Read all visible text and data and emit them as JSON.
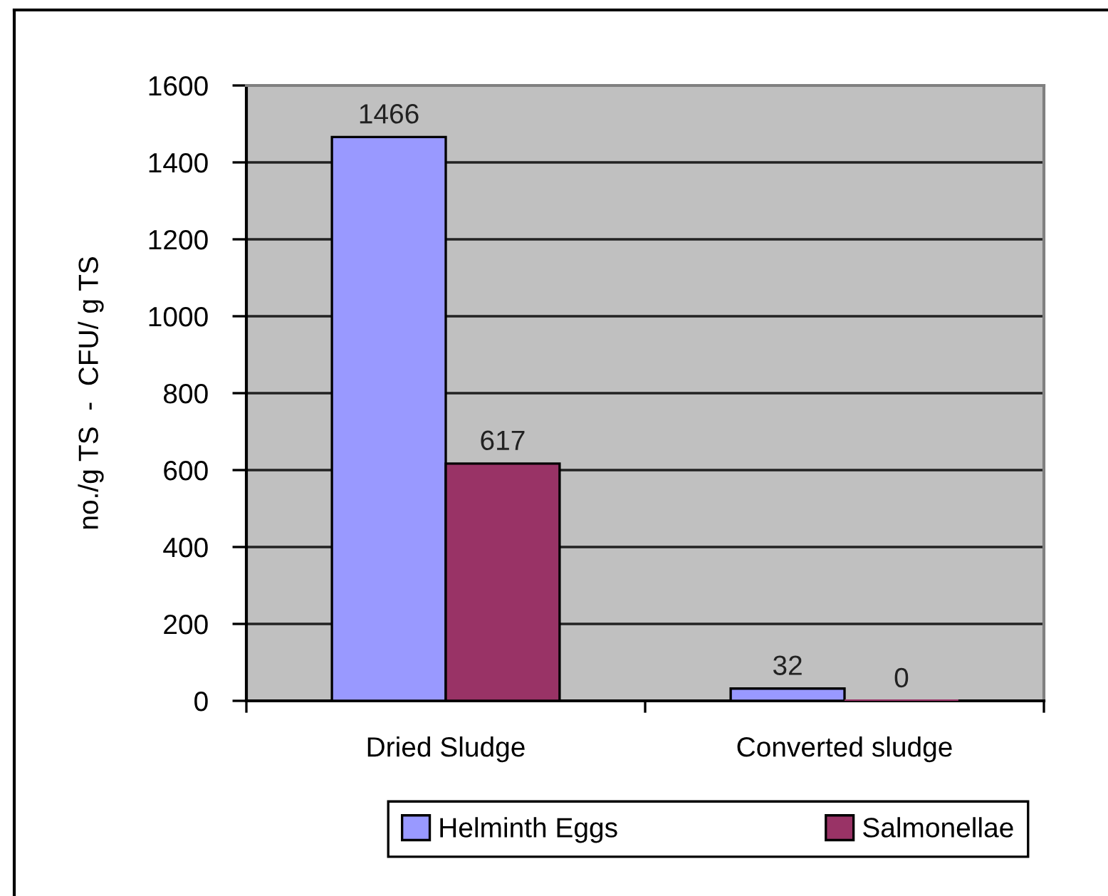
{
  "chart_data": {
    "type": "bar",
    "categories": [
      "Dried Sludge",
      "Converted sludge"
    ],
    "series": [
      {
        "name": "Helminth Eggs",
        "color": "#9999ff",
        "values": [
          1466,
          32
        ]
      },
      {
        "name": "Salmonellae",
        "color": "#993366",
        "values": [
          617,
          0
        ]
      }
    ],
    "ylabel": "no./g TS  -  CFU/ g TS",
    "ylim": [
      0,
      1600
    ],
    "yticks": [
      0,
      200,
      400,
      600,
      800,
      1000,
      1200,
      1400,
      1600
    ],
    "grid": "y",
    "legend": "bottom",
    "data_labels": true
  }
}
